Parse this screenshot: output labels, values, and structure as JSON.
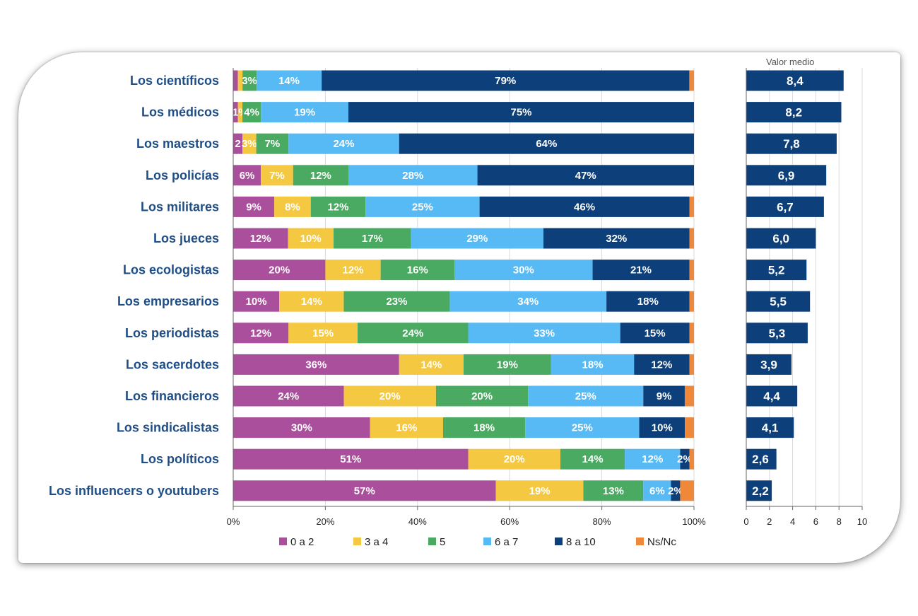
{
  "chart_data": [
    {
      "type": "bar",
      "stacked": true,
      "orientation": "horizontal",
      "categories": [
        "Los científicos",
        "Los médicos",
        "Los maestros",
        "Los policías",
        "Los militares",
        "Los jueces",
        "Los ecologistas",
        "Los empresarios",
        "Los periodistas",
        "Los sacerdotes",
        "Los financieros",
        "Los sindicalistas",
        "Los políticos",
        "Los influencers o youtubers"
      ],
      "series": [
        {
          "name": "0 a 2",
          "color": "#a94f9c",
          "values": [
            1,
            1,
            2,
            6,
            9,
            12,
            20,
            10,
            12,
            36,
            24,
            30,
            51,
            57
          ],
          "labels": [
            "",
            "",
            "2",
            "6%",
            "9%",
            "12%",
            "20%",
            "10%",
            "12%",
            "36%",
            "24%",
            "30%",
            "51%",
            "57%"
          ]
        },
        {
          "name": "3 a 4",
          "color": "#f5c842",
          "values": [
            1,
            1,
            3,
            7,
            8,
            10,
            12,
            14,
            15,
            14,
            20,
            16,
            20,
            19
          ],
          "labels": [
            "",
            "1%",
            "3%",
            "7%",
            "8%",
            "10%",
            "12%",
            "14%",
            "15%",
            "14%",
            "20%",
            "16%",
            "20%",
            "19%"
          ]
        },
        {
          "name": "5",
          "color": "#4aaa62",
          "values": [
            3,
            4,
            7,
            12,
            12,
            17,
            16,
            23,
            24,
            19,
            20,
            18,
            14,
            13
          ],
          "labels": [
            "3%",
            "4%",
            "7%",
            "12%",
            "12%",
            "17%",
            "16%",
            "23%",
            "24%",
            "19%",
            "20%",
            "18%",
            "14%",
            "13%"
          ]
        },
        {
          "name": "6 a 7",
          "color": "#58baf5",
          "values": [
            14,
            19,
            24,
            28,
            25,
            29,
            30,
            34,
            33,
            18,
            25,
            25,
            12,
            6
          ],
          "labels": [
            "14%",
            "19%",
            "24%",
            "28%",
            "25%",
            "29%",
            "30%",
            "34%",
            "33%",
            "18%",
            "25%",
            "25%",
            "12%",
            "6%"
          ]
        },
        {
          "name": "8 a 10",
          "color": "#0d3f7a",
          "values": [
            79,
            75,
            64,
            47,
            46,
            32,
            21,
            18,
            15,
            12,
            9,
            10,
            2,
            2
          ],
          "labels": [
            "79%",
            "75%",
            "64%",
            "47%",
            "46%",
            "32%",
            "21%",
            "18%",
            "15%",
            "12%",
            "9%",
            "10%",
            "2%",
            "2%"
          ]
        },
        {
          "name": "Ns/Nc",
          "color": "#f0883a",
          "values": [
            1,
            0,
            0,
            0,
            1,
            1,
            1,
            1,
            1,
            1,
            2,
            2,
            1,
            3
          ],
          "labels": [
            "",
            "",
            "",
            "",
            "",
            "",
            "",
            "",
            "",
            "",
            "",
            "",
            "",
            ""
          ]
        }
      ],
      "xlim": [
        0,
        100
      ],
      "x_ticks": [
        "0%",
        "20%",
        "40%",
        "60%",
        "80%",
        "100%"
      ],
      "legend_position": "bottom"
    },
    {
      "type": "bar",
      "orientation": "horizontal",
      "title": "Valor medio",
      "categories": [
        "Los científicos",
        "Los médicos",
        "Los maestros",
        "Los policías",
        "Los militares",
        "Los jueces",
        "Los ecologistas",
        "Los empresarios",
        "Los periodistas",
        "Los sacerdotes",
        "Los financieros",
        "Los sindicalistas",
        "Los políticos",
        "Los influencers o youtubers"
      ],
      "values": [
        8.4,
        8.2,
        7.8,
        6.9,
        6.7,
        6.0,
        5.2,
        5.5,
        5.3,
        3.9,
        4.4,
        4.1,
        2.6,
        2.2
      ],
      "labels": [
        "8,4",
        "8,2",
        "7,8",
        "6,9",
        "6,7",
        "6,0",
        "5,2",
        "5,5",
        "5,3",
        "3,9",
        "4,4",
        "4,1",
        "2,6",
        "2,2"
      ],
      "color": "#0d3f7a",
      "xlim": [
        0,
        10
      ],
      "x_ticks": [
        "0",
        "2",
        "4",
        "6",
        "8",
        "10"
      ]
    }
  ]
}
